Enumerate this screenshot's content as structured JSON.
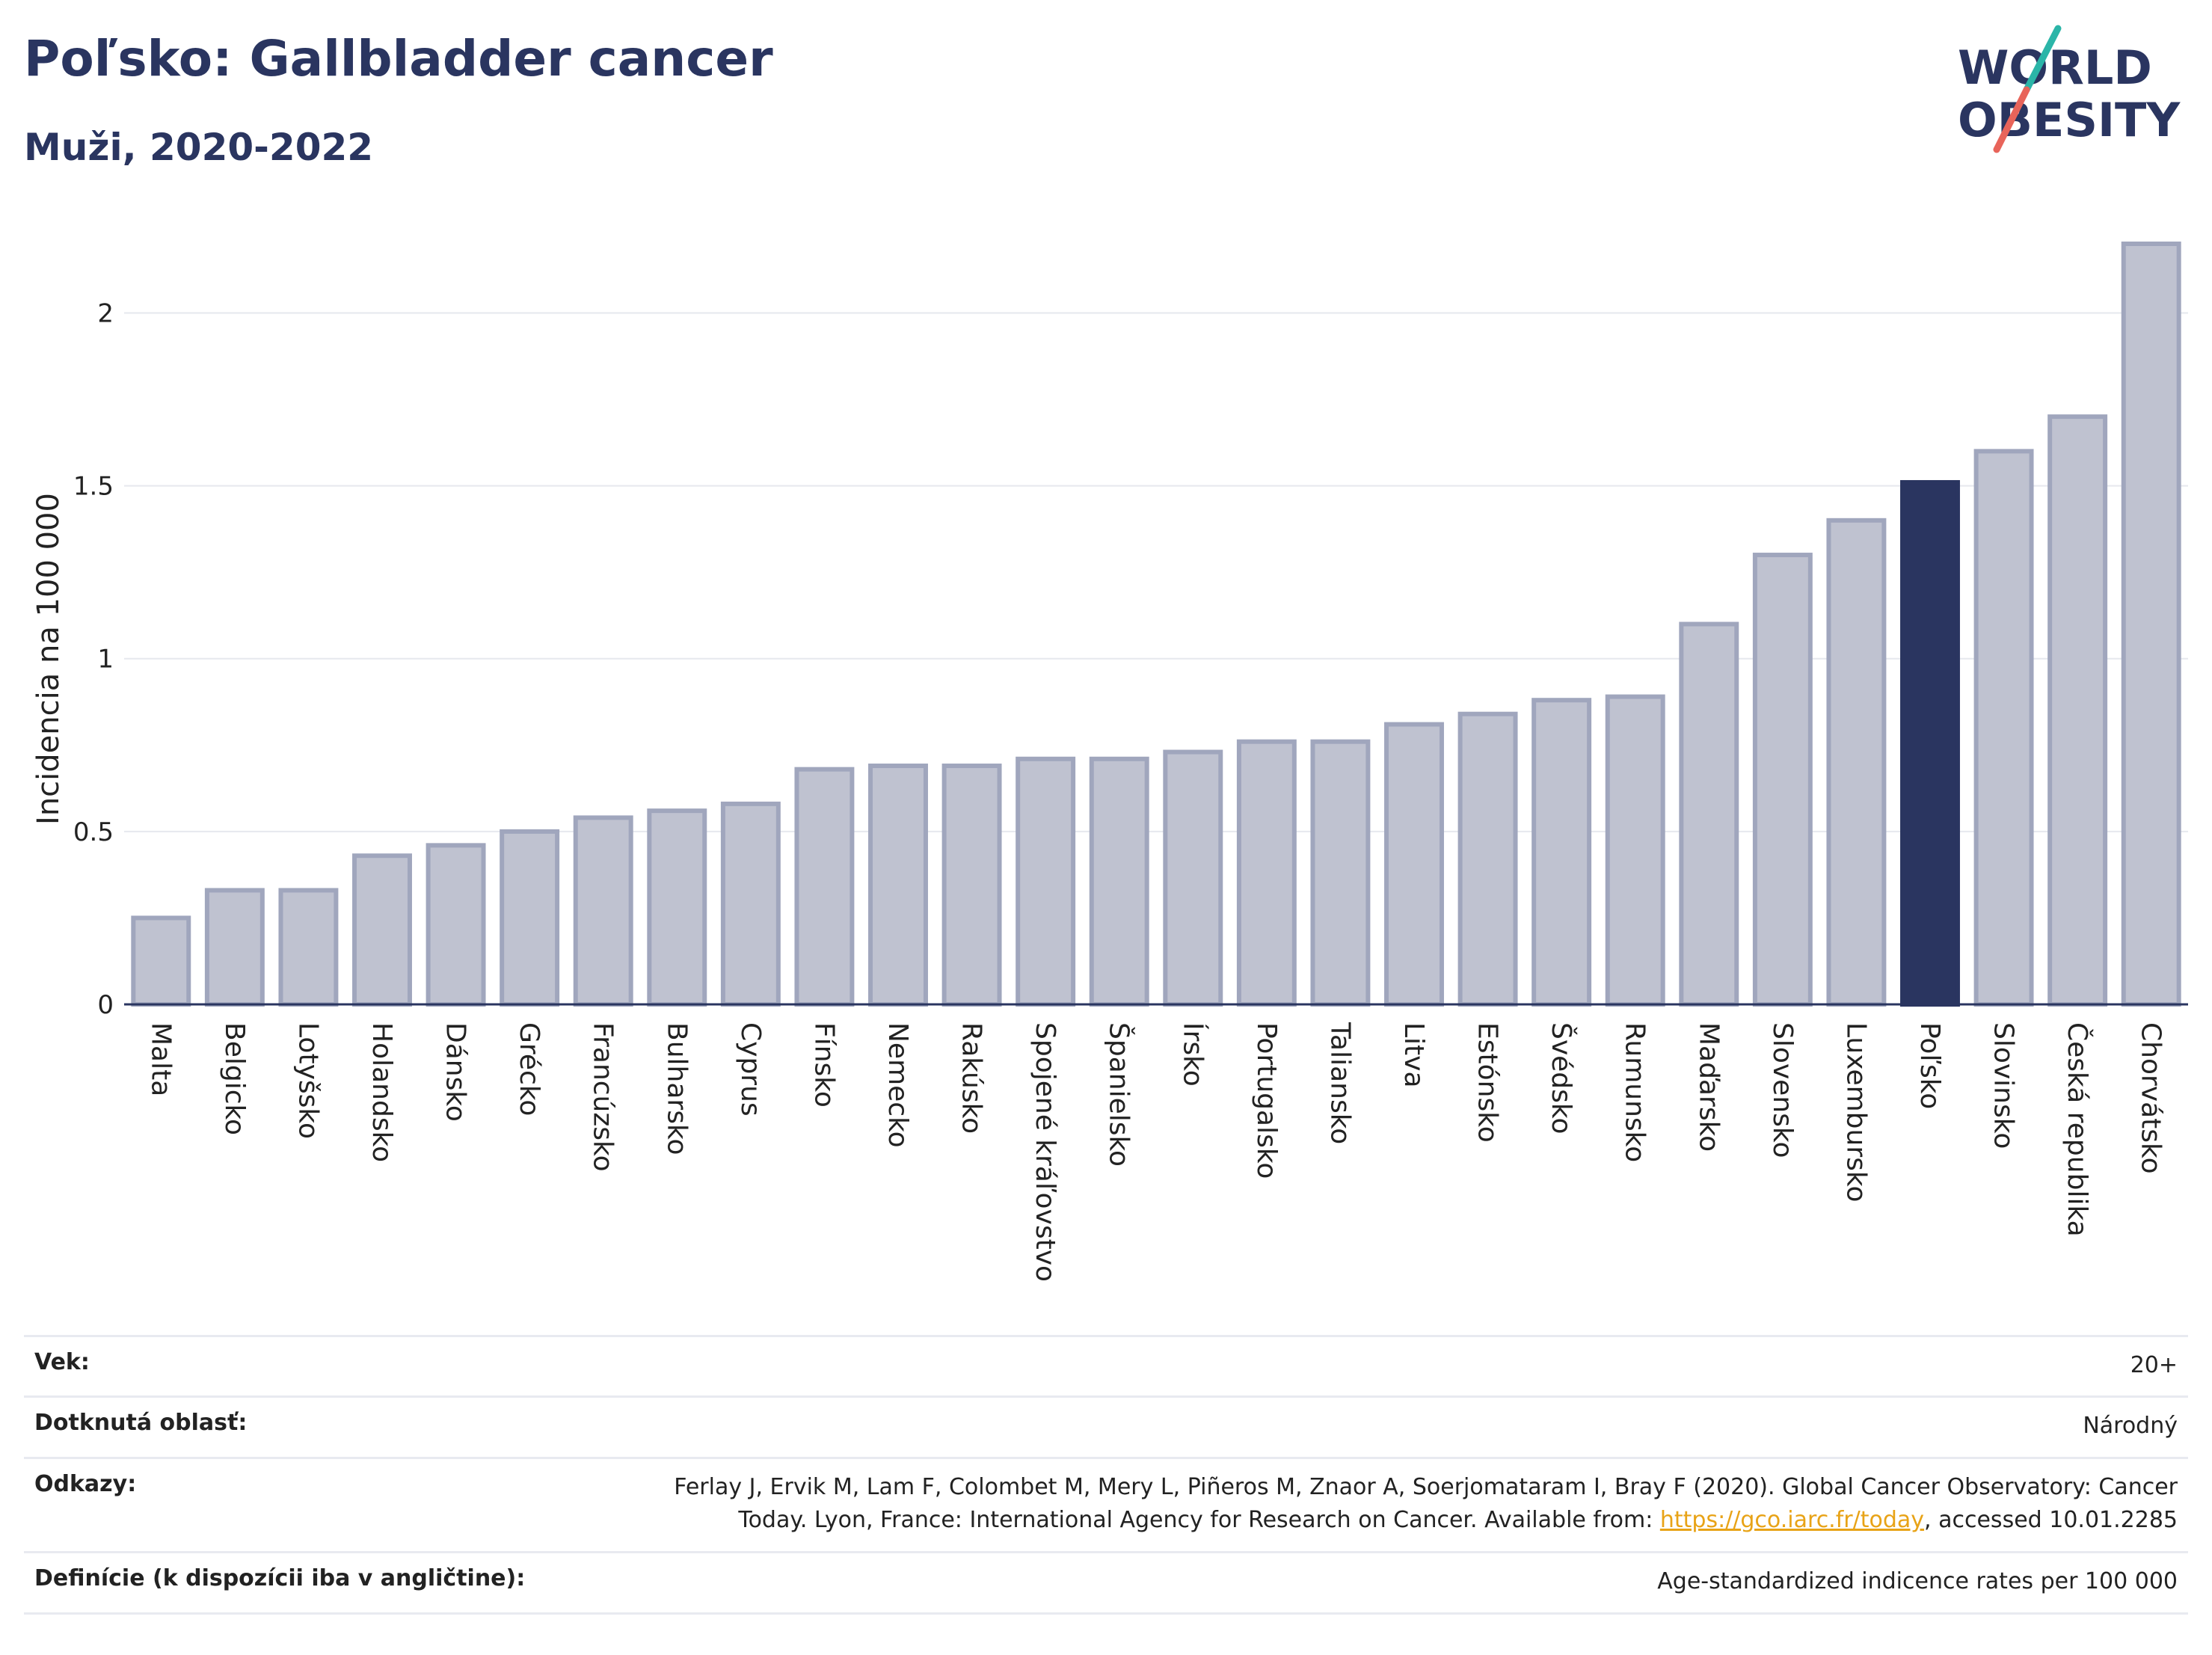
{
  "title": "Poľsko: Gallbladder cancer",
  "subtitle": "Muži, 2020-2022",
  "logo": {
    "line1": "WORLD",
    "line2": "OBESITY",
    "colors": {
      "text": "#2a3560",
      "slash_top": "#2bb5a8",
      "slash_bottom": "#e8645a"
    }
  },
  "colors": {
    "bar": "#bfc2d0",
    "bar_border": "#a0a6bd",
    "highlight": "#2a3560",
    "grid": "#e6e8ee"
  },
  "chart_data": {
    "type": "bar",
    "ylabel": "Incidencia na 100 000",
    "ylim": [
      0,
      2.2
    ],
    "yticks": [
      0,
      0.5,
      1,
      1.5,
      2
    ],
    "ytick_labels": [
      "0",
      "0.5",
      "1",
      "1.5",
      "2"
    ],
    "grid": true,
    "highlight": "Poľsko",
    "categories": [
      "Malta",
      "Belgicko",
      "Lotyšsko",
      "Holandsko",
      "Dánsko",
      "Grécko",
      "Francúzsko",
      "Bulharsko",
      "Cyprus",
      "Fínsko",
      "Nemecko",
      "Rakúsko",
      "Spojené kráľovstvo",
      "Španielsko",
      "Írsko",
      "Portugalsko",
      "Taliansko",
      "Litva",
      "Estónsko",
      "Švédsko",
      "Rumunsko",
      "Maďarsko",
      "Slovensko",
      "Luxembursko",
      "Poľsko",
      "Slovinsko",
      "Česká republika",
      "Chorvátsko"
    ],
    "values": [
      0.25,
      0.33,
      0.33,
      0.43,
      0.46,
      0.5,
      0.54,
      0.56,
      0.58,
      0.68,
      0.69,
      0.69,
      0.71,
      0.71,
      0.73,
      0.76,
      0.76,
      0.81,
      0.84,
      0.88,
      0.89,
      1.1,
      1.3,
      1.4,
      1.51,
      1.6,
      1.7,
      2.2
    ]
  },
  "meta": {
    "age_label": "Vek:",
    "age_value": "20+",
    "area_label": "Dotknutá oblasť:",
    "area_value": "Národný",
    "refs_label": "Odkazy:",
    "refs_text1": "Ferlay J, Ervik M, Lam F, Colombet M, Mery L, Piñeros M, Znaor A, Soerjomataram I, Bray F (2020). Global Cancer Observatory: Cancer Today. Lyon, France: International Agency for Research on Cancer. Available from: ",
    "refs_link": "https://gco.iarc.fr/today",
    "refs_text2": ", accessed 10.01.2285",
    "def_label": "Definície (k dispozícii iba v angličtine):",
    "def_value": "Age-standardized indicence rates per 100 000"
  }
}
